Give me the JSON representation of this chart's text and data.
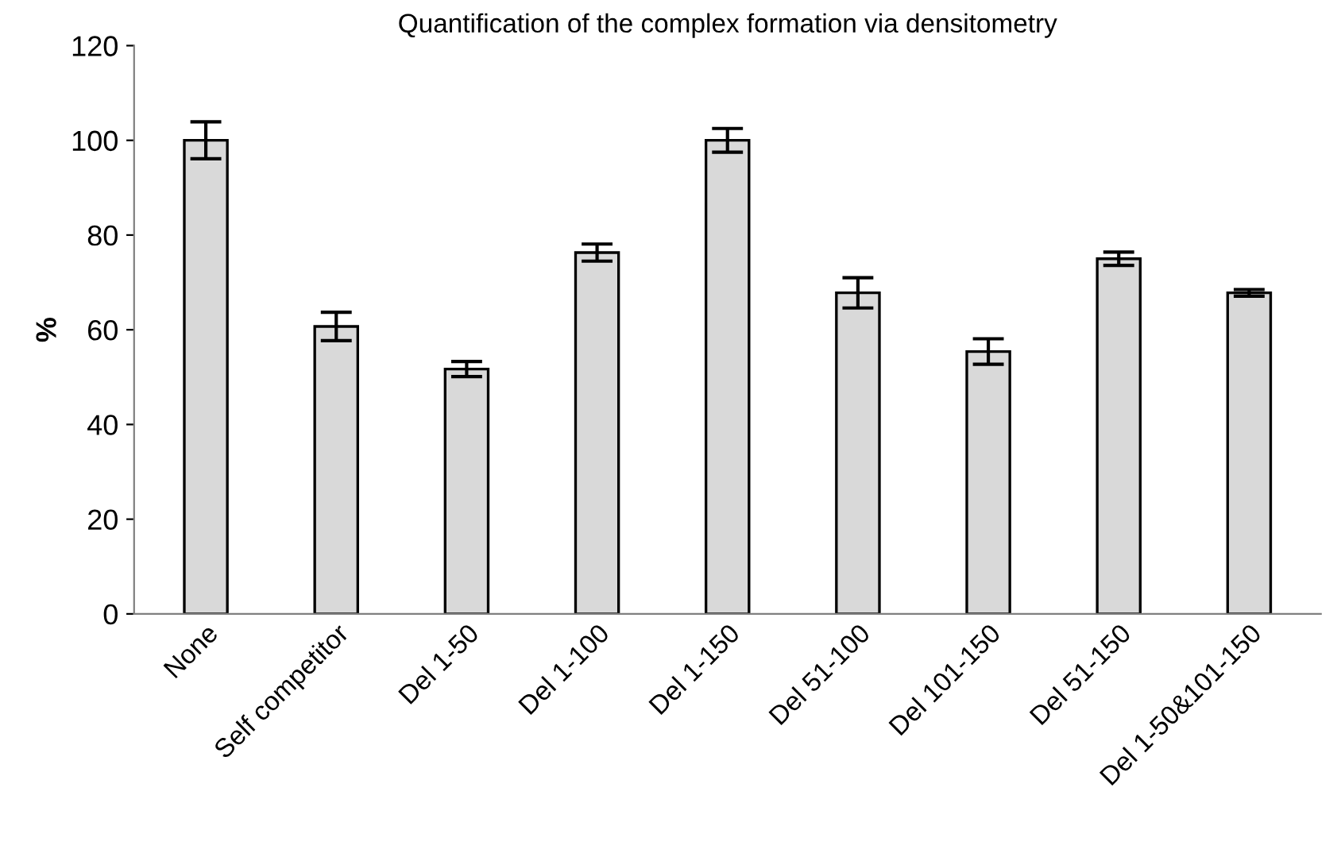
{
  "chart_data": {
    "type": "bar",
    "title": "Quantification of the complex formation via densitometry",
    "ylabel": "%",
    "categories": [
      "None",
      "Self competitor",
      "Del 1-50",
      "Del 1-100",
      "Del 1-150",
      "Del 51-100",
      "Del 101-150",
      "Del 51-150",
      "Del 1-50&101-150"
    ],
    "values": [
      100,
      60.7,
      51.7,
      76.3,
      100,
      67.8,
      55.4,
      75,
      67.8
    ],
    "errors": [
      3.9,
      3,
      1.6,
      1.8,
      2.5,
      3.2,
      2.7,
      1.4,
      0.7
    ],
    "color": "#d9d9d9",
    "ylim": [
      0,
      120
    ],
    "yticks": [
      0,
      20,
      40,
      60,
      80,
      100,
      120
    ],
    "grid": false
  }
}
